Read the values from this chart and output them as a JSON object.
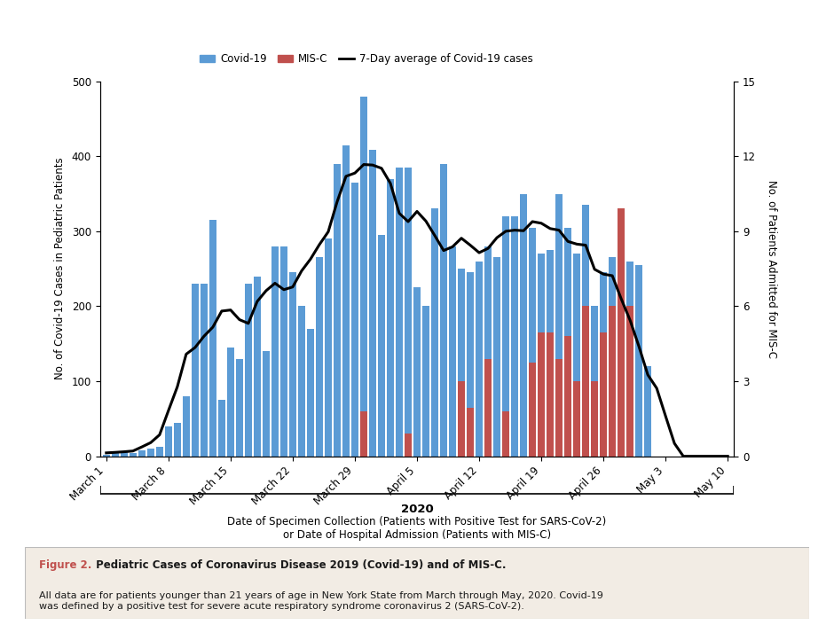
{
  "covid_cases": [
    2,
    5,
    7,
    4,
    8,
    10,
    13,
    40,
    45,
    80,
    230,
    230,
    315,
    75,
    145,
    130,
    230,
    240,
    140,
    280,
    280,
    245,
    200,
    170,
    265,
    290,
    390,
    415,
    365,
    480,
    408,
    295,
    370,
    385,
    385,
    225,
    200,
    330,
    390,
    280,
    250,
    245,
    260,
    280,
    265,
    320,
    320,
    350,
    305,
    270,
    275,
    350,
    305,
    270,
    335,
    200,
    245,
    265,
    125,
    260,
    255,
    120,
    0,
    0,
    0,
    0,
    0,
    0,
    0,
    0,
    0
  ],
  "misc_cases": [
    0,
    0,
    0,
    0,
    0,
    0,
    0,
    0,
    0,
    0,
    0,
    0,
    0,
    0,
    0,
    0,
    0,
    0,
    0,
    0,
    0,
    0,
    0,
    0,
    0,
    0,
    0,
    0,
    0,
    60,
    0,
    0,
    0,
    0,
    30,
    0,
    0,
    0,
    0,
    0,
    100,
    65,
    0,
    130,
    0,
    60,
    0,
    0,
    125,
    165,
    165,
    130,
    160,
    100,
    200,
    100,
    165,
    200,
    330,
    200,
    0,
    0,
    0,
    0,
    0,
    0,
    0,
    0,
    0,
    0,
    0
  ],
  "n_days": 71,
  "covid_color": "#5b9bd5",
  "misc_color": "#c0504d",
  "line_color": "#000000",
  "background_color": "#ffffff",
  "caption_background": "#f2ece4",
  "ylabel_left": "No. of Covid-19 Cases in Pediatric Patients",
  "ylabel_right": "No. of Patients Admitted for MIS-C",
  "xlabel_main": "2020",
  "xlabel_sub": "Date of Specimen Collection (Patients with Positive Test for SARS-CoV-2)\nor Date of Hospital Admission (Patients with MIS-C)",
  "ylim_left": [
    0,
    500
  ],
  "ylim_right": [
    0,
    15
  ],
  "yticks_left": [
    0,
    100,
    200,
    300,
    400,
    500
  ],
  "yticks_right": [
    0,
    3,
    6,
    9,
    12,
    15
  ],
  "legend_labels": [
    "Covid-19",
    "MIS-C",
    "7-Day average of Covid-19 cases"
  ],
  "fig2_label": "Figure 2.",
  "fig2_title": " Pediatric Cases of Coronavirus Disease 2019 (Covid-19) and of MIS-C.",
  "fig2_body": "All data are for patients younger than 21 years of age in New York State from March through May, 2020. Covid-19\nwas defined by a positive test for severe acute respiratory syndrome coronavirus 2 (SARS-CoV-2).",
  "xtick_labels": [
    "March 1",
    "March 8",
    "March 15",
    "March 22",
    "March 29",
    "April 5",
    "April 12",
    "April 19",
    "April 26",
    "May 3",
    "May 10"
  ],
  "xtick_positions": [
    0,
    7,
    14,
    21,
    28,
    35,
    42,
    49,
    56,
    63,
    70
  ]
}
